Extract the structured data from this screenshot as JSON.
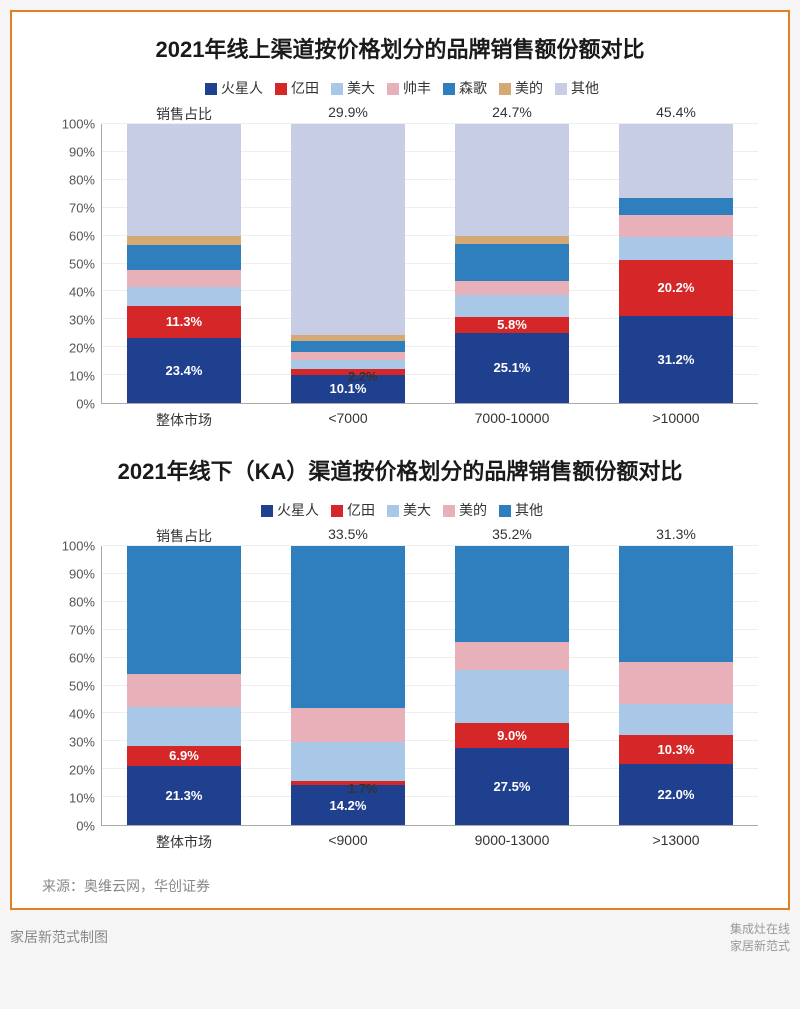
{
  "frame_border_color": "#e67e22",
  "background_color": "#ffffff",
  "source_text": "来源：奥维云网，华创证券",
  "footer_left": "家居新范式制图",
  "footer_right_top": "集成灶在线",
  "footer_right_bottom": "家居新范式",
  "y_ticks": [
    "0%",
    "10%",
    "20%",
    "30%",
    "40%",
    "50%",
    "60%",
    "70%",
    "80%",
    "90%",
    "100%"
  ],
  "chart1": {
    "title": "2021年线上渠道按价格划分的品牌销售额份额对比",
    "legend": [
      {
        "name": "火星人",
        "color": "#1f3f8f"
      },
      {
        "name": "亿田",
        "color": "#d62728"
      },
      {
        "name": "美大",
        "color": "#a9c8e8"
      },
      {
        "name": "帅丰",
        "color": "#e8b0b8"
      },
      {
        "name": "森歌",
        "color": "#2f7fbf"
      },
      {
        "name": "美的",
        "color": "#d6a873"
      },
      {
        "name": "其他",
        "color": "#c8cde6"
      }
    ],
    "top_labels": [
      "销售占比",
      "29.9%",
      "24.7%",
      "45.4%"
    ],
    "categories": [
      "整体市场",
      "<7000",
      "7000-10000",
      ">10000"
    ],
    "bars": [
      {
        "segs": [
          {
            "v": 23.4,
            "c": "#1f3f8f",
            "lbl": "23.4%",
            "lc": "#ffffff"
          },
          {
            "v": 11.3,
            "c": "#d62728",
            "lbl": "11.3%",
            "lc": "#ffffff"
          },
          {
            "v": 7,
            "c": "#a9c8e8"
          },
          {
            "v": 6,
            "c": "#e8b0b8"
          },
          {
            "v": 9,
            "c": "#2f7fbf"
          },
          {
            "v": 3,
            "c": "#d6a873"
          },
          {
            "v": 40.3,
            "c": "#c8cde6"
          }
        ]
      },
      {
        "segs": [
          {
            "v": 10.1,
            "c": "#1f3f8f",
            "lbl": "10.1%",
            "lc": "#ffffff"
          },
          {
            "v": 2.2,
            "c": "#d62728",
            "lbl": "2.2%",
            "lc": "#333333",
            "shift": "-50% -110%"
          },
          {
            "v": 3,
            "c": "#a9c8e8"
          },
          {
            "v": 3,
            "c": "#e8b0b8"
          },
          {
            "v": 4,
            "c": "#2f7fbf"
          },
          {
            "v": 2,
            "c": "#d6a873"
          },
          {
            "v": 75.7,
            "c": "#c8cde6"
          }
        ]
      },
      {
        "segs": [
          {
            "v": 25.1,
            "c": "#1f3f8f",
            "lbl": "25.1%",
            "lc": "#ffffff"
          },
          {
            "v": 5.8,
            "c": "#d62728",
            "lbl": "5.8%",
            "lc": "#ffffff"
          },
          {
            "v": 8,
            "c": "#a9c8e8"
          },
          {
            "v": 5,
            "c": "#e8b0b8"
          },
          {
            "v": 13,
            "c": "#2f7fbf"
          },
          {
            "v": 3,
            "c": "#d6a873"
          },
          {
            "v": 40.1,
            "c": "#c8cde6"
          }
        ]
      },
      {
        "segs": [
          {
            "v": 31.2,
            "c": "#1f3f8f",
            "lbl": "31.2%",
            "lc": "#ffffff"
          },
          {
            "v": 20.2,
            "c": "#d62728",
            "lbl": "20.2%",
            "lc": "#ffffff"
          },
          {
            "v": 8,
            "c": "#a9c8e8"
          },
          {
            "v": 8,
            "c": "#e8b0b8"
          },
          {
            "v": 6,
            "c": "#2f7fbf"
          },
          {
            "v": 26.6,
            "c": "#c8cde6"
          }
        ]
      }
    ]
  },
  "chart2": {
    "title": "2021年线下（KA）渠道按价格划分的品牌销售额份额对比",
    "legend": [
      {
        "name": "火星人",
        "color": "#1f3f8f"
      },
      {
        "name": "亿田",
        "color": "#d62728"
      },
      {
        "name": "美大",
        "color": "#a9c8e8"
      },
      {
        "name": "美的",
        "color": "#e8b0b8"
      },
      {
        "name": "其他",
        "color": "#2f7fbf"
      }
    ],
    "top_labels": [
      "销售占比",
      "33.5%",
      "35.2%",
      "31.3%"
    ],
    "categories": [
      "整体市场",
      "<9000",
      "9000-13000",
      ">13000"
    ],
    "bars": [
      {
        "segs": [
          {
            "v": 21.3,
            "c": "#1f3f8f",
            "lbl": "21.3%",
            "lc": "#ffffff"
          },
          {
            "v": 6.9,
            "c": "#d62728",
            "lbl": "6.9%",
            "lc": "#ffffff"
          },
          {
            "v": 14,
            "c": "#a9c8e8"
          },
          {
            "v": 12,
            "c": "#e8b0b8"
          },
          {
            "v": 45.8,
            "c": "#2f7fbf"
          }
        ]
      },
      {
        "segs": [
          {
            "v": 14.2,
            "c": "#1f3f8f",
            "lbl": "14.2%",
            "lc": "#ffffff"
          },
          {
            "v": 1.7,
            "c": "#d62728",
            "lbl": "1.7%",
            "lc": "#333333",
            "shift": "-50% -110%"
          },
          {
            "v": 14,
            "c": "#a9c8e8"
          },
          {
            "v": 12,
            "c": "#e8b0b8"
          },
          {
            "v": 58.1,
            "c": "#2f7fbf"
          }
        ]
      },
      {
        "segs": [
          {
            "v": 27.5,
            "c": "#1f3f8f",
            "lbl": "27.5%",
            "lc": "#ffffff"
          },
          {
            "v": 9.0,
            "c": "#d62728",
            "lbl": "9.0%",
            "lc": "#ffffff"
          },
          {
            "v": 19,
            "c": "#a9c8e8"
          },
          {
            "v": 10,
            "c": "#e8b0b8"
          },
          {
            "v": 34.5,
            "c": "#2f7fbf"
          }
        ]
      },
      {
        "segs": [
          {
            "v": 22.0,
            "c": "#1f3f8f",
            "lbl": "22.0%",
            "lc": "#ffffff"
          },
          {
            "v": 10.3,
            "c": "#d62728",
            "lbl": "10.3%",
            "lc": "#ffffff"
          },
          {
            "v": 11,
            "c": "#a9c8e8"
          },
          {
            "v": 15,
            "c": "#e8b0b8"
          },
          {
            "v": 41.7,
            "c": "#2f7fbf"
          }
        ]
      }
    ]
  }
}
